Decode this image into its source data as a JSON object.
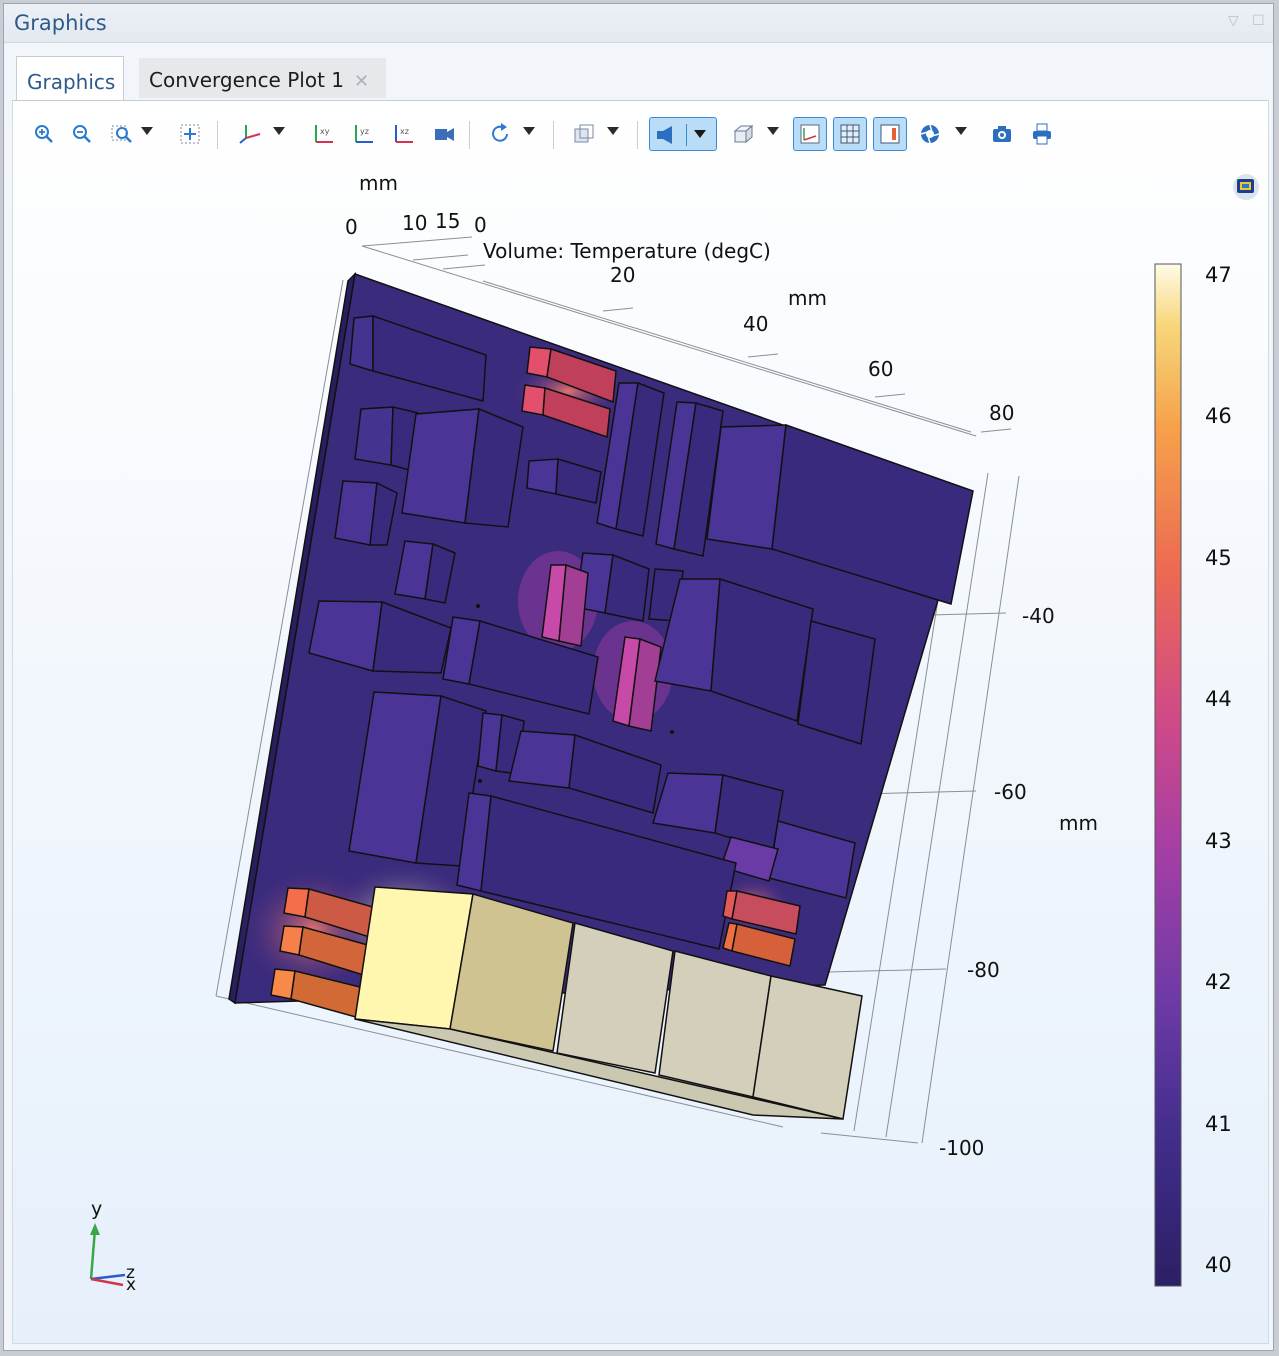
{
  "window": {
    "title": "Graphics"
  },
  "tabs": [
    {
      "label": "Graphics",
      "active": true
    },
    {
      "label": "Convergence Plot 1",
      "active": false
    }
  ],
  "toolbar": {
    "icons": [
      "zoom-in-icon",
      "zoom-out-icon",
      "zoom-box-icon",
      "zoom-extents-icon",
      "view-axes-icon",
      "xy-view-icon",
      "yz-view-icon",
      "xz-view-icon",
      "camera-view-icon",
      "rotate-icon",
      "transparency-icon",
      "scene-light-icon",
      "wireframe-icon",
      "grid-icon",
      "axis-orientation-icon",
      "colorbar-icon",
      "render-icon",
      "snapshot-icon",
      "print-icon"
    ]
  },
  "plot": {
    "title": "Volume: Temperature (degC)",
    "axes": {
      "z": {
        "unit": "mm",
        "ticks": [
          "0",
          "10",
          "15"
        ]
      },
      "x": {
        "unit": "mm",
        "ticks": [
          "0",
          "20",
          "40",
          "60",
          "80"
        ]
      },
      "y": {
        "unit": "mm",
        "ticks": [
          "-40",
          "-60",
          "-80",
          "-100"
        ]
      }
    },
    "colorbar": {
      "ticks": [
        "47",
        "46",
        "45",
        "44",
        "43",
        "42",
        "41",
        "40"
      ],
      "min": 39.8,
      "max": 47.1
    },
    "triad": {
      "y": "y",
      "z": "z",
      "x": "x"
    }
  }
}
